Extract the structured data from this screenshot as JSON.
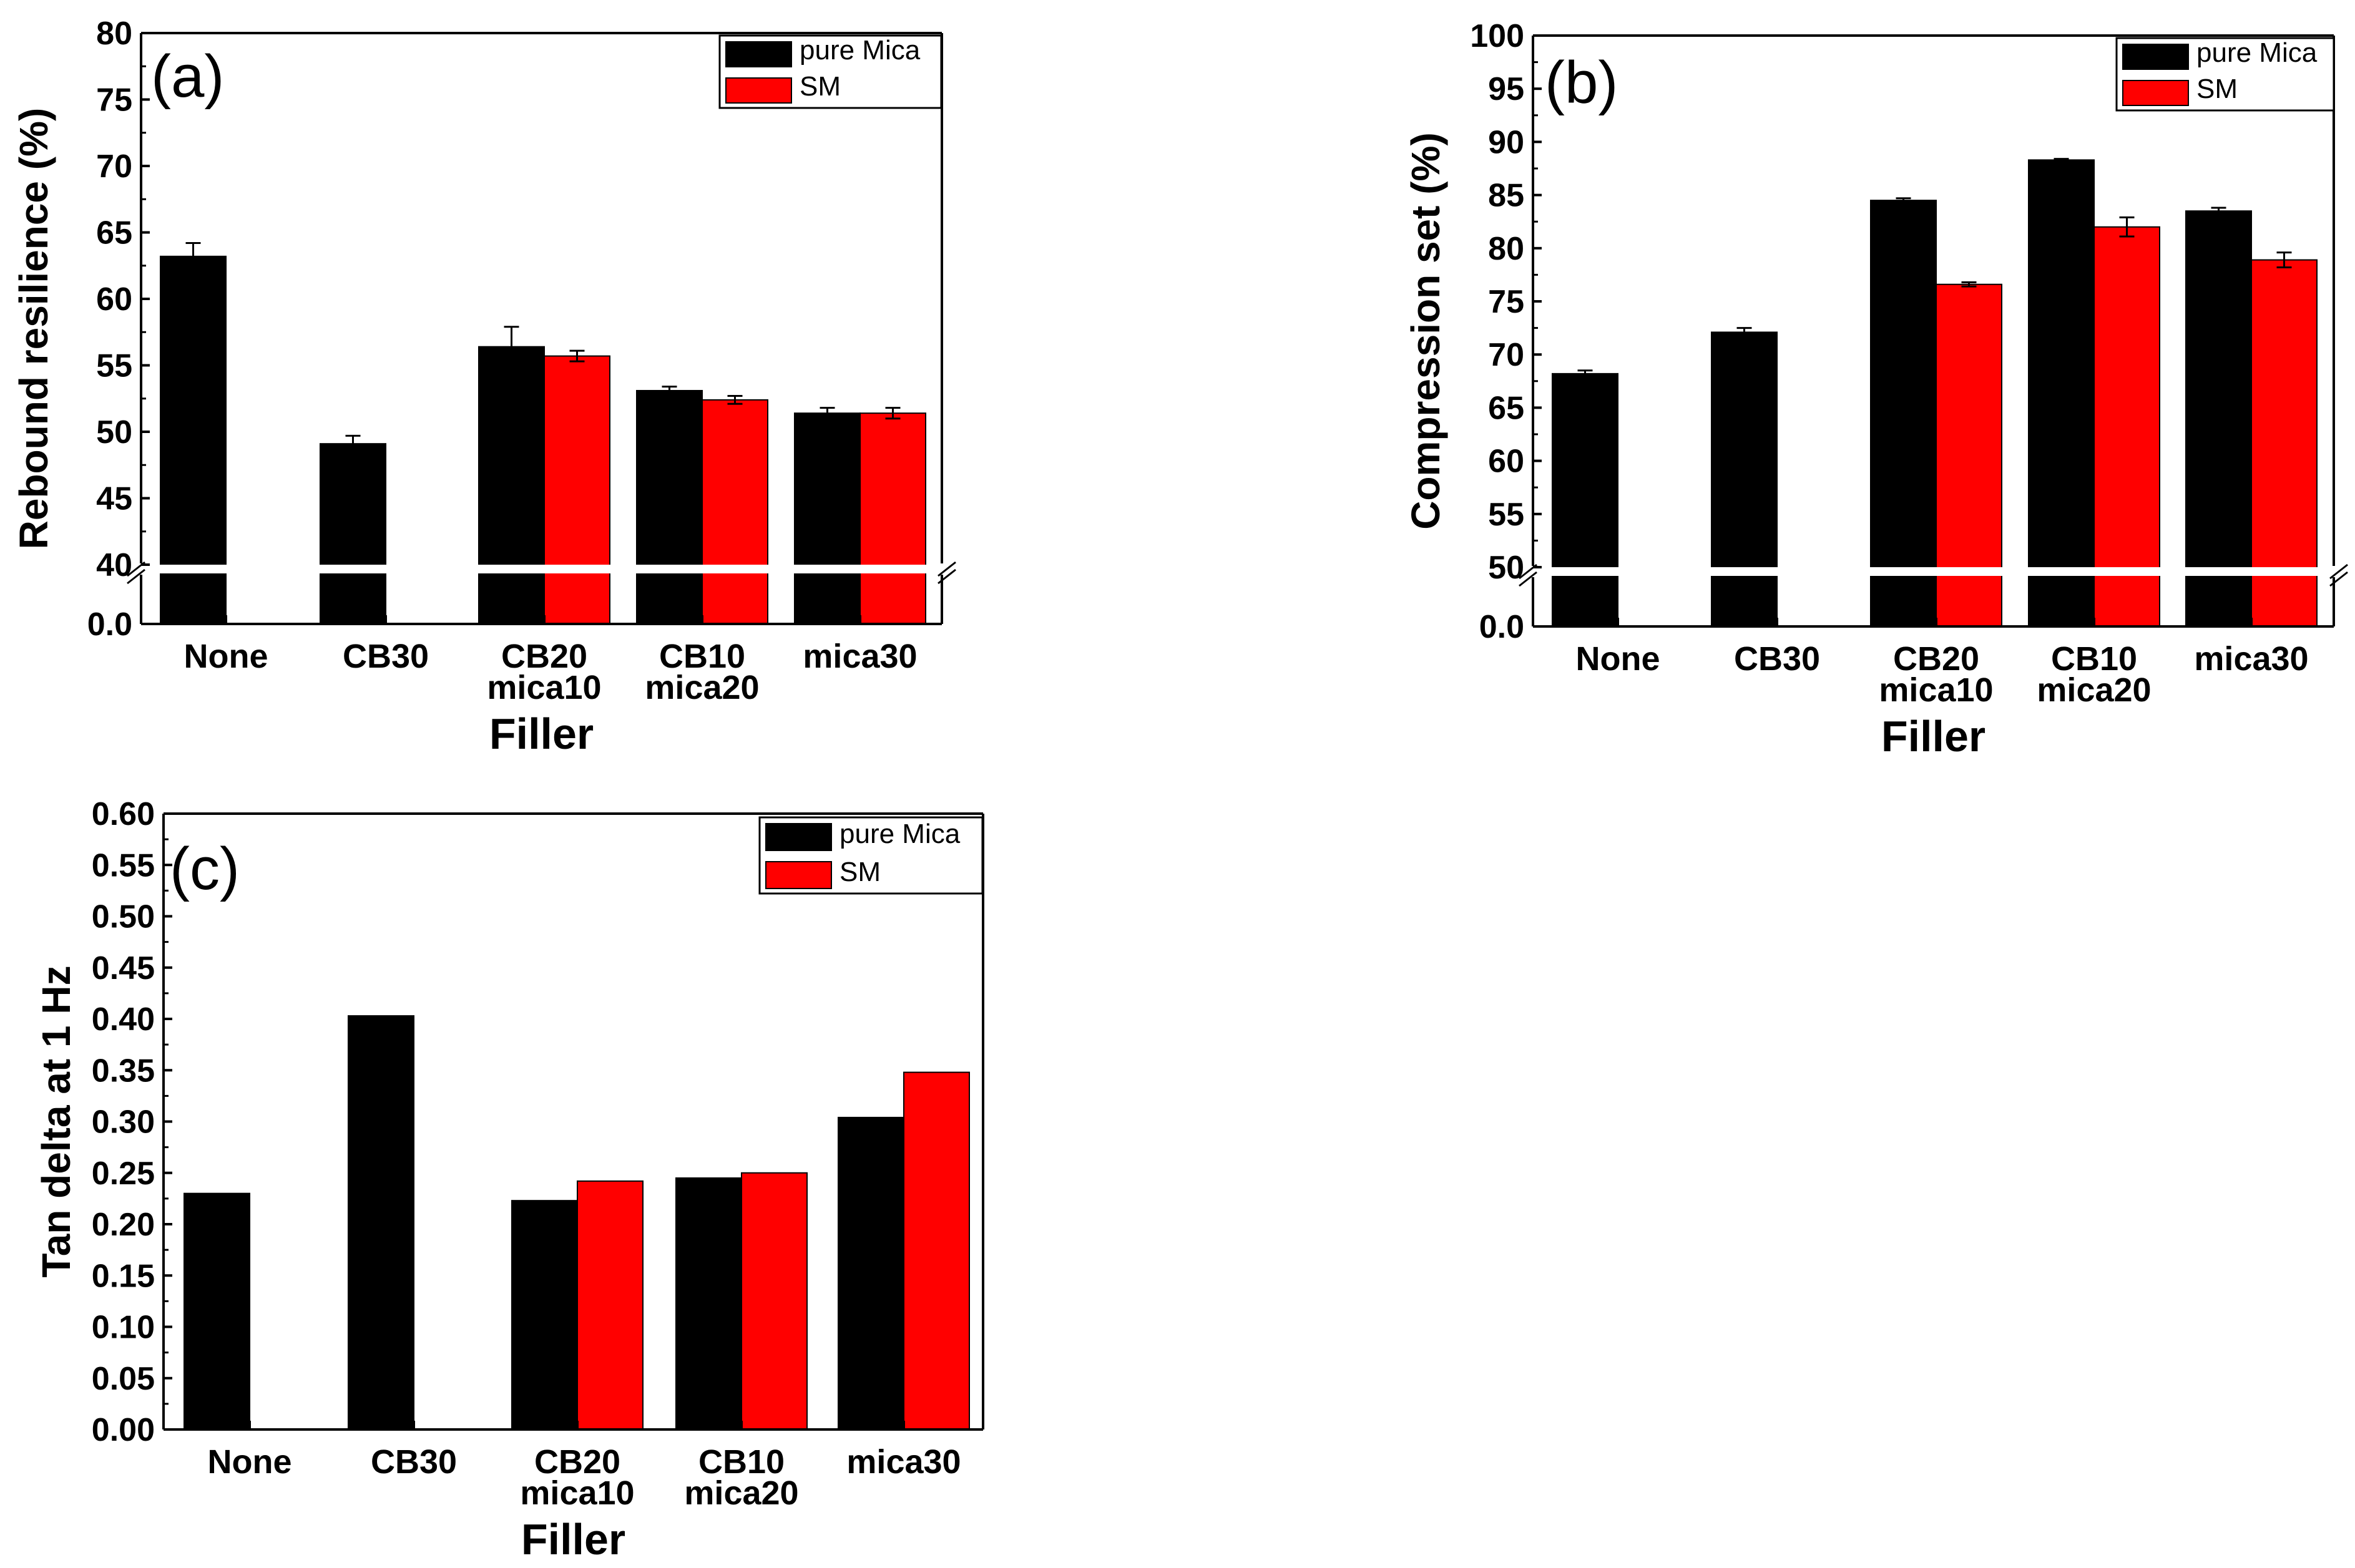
{
  "colors": {
    "pure_mica": "#000000",
    "sm": "#ff0000",
    "axis": "#000000",
    "background": "#ffffff"
  },
  "chart_data": [
    {
      "id": "a",
      "type": "bar",
      "panel_label": "(a)",
      "title": "",
      "xlabel": "Filler",
      "ylabel": "Rebound resilience (%)",
      "categories": [
        [
          "None"
        ],
        [
          "CB30"
        ],
        [
          "CB20",
          "mica10"
        ],
        [
          "CB10",
          "mica20"
        ],
        [
          "mica30"
        ]
      ],
      "series": [
        {
          "name": "pure Mica",
          "values": [
            63.2,
            49.1,
            56.4,
            53.1,
            51.4
          ],
          "errors": [
            1.0,
            0.6,
            1.5,
            0.3,
            0.4
          ]
        },
        {
          "name": "SM",
          "values": [
            null,
            null,
            55.7,
            52.4,
            51.4
          ],
          "errors": [
            null,
            null,
            0.4,
            0.3,
            0.4
          ]
        }
      ],
      "axis_break": {
        "lower_ticks": [
          "0.0"
        ],
        "lower_range": [
          0,
          0
        ],
        "upper_range": [
          40,
          80
        ]
      },
      "ylim": [
        40,
        80
      ],
      "yticks": [
        "40",
        "45",
        "50",
        "55",
        "60",
        "65",
        "70",
        "75",
        "80"
      ],
      "legend": [
        "pure Mica",
        "SM"
      ],
      "legend_position": "top-right",
      "grid": false
    },
    {
      "id": "b",
      "type": "bar",
      "panel_label": "(b)",
      "title": "",
      "xlabel": "Filler",
      "ylabel": "Compression set (%)",
      "categories": [
        [
          "None"
        ],
        [
          "CB30"
        ],
        [
          "CB20",
          "mica10"
        ],
        [
          "CB10",
          "mica20"
        ],
        [
          "mica30"
        ]
      ],
      "series": [
        {
          "name": "pure Mica",
          "values": [
            68.2,
            72.1,
            84.5,
            88.3,
            83.5
          ],
          "errors": [
            0.3,
            0.4,
            0.2,
            0.1,
            0.3
          ]
        },
        {
          "name": "SM",
          "values": [
            null,
            null,
            76.6,
            82.0,
            78.9
          ],
          "errors": [
            null,
            null,
            0.2,
            0.9,
            0.7
          ]
        }
      ],
      "axis_break": {
        "lower_ticks": [
          "0.0"
        ],
        "lower_range": [
          0,
          0
        ],
        "upper_range": [
          50,
          100
        ]
      },
      "ylim": [
        50,
        100
      ],
      "yticks": [
        "50",
        "55",
        "60",
        "65",
        "70",
        "75",
        "80",
        "85",
        "90",
        "95",
        "100"
      ],
      "legend": [
        "pure Mica",
        "SM"
      ],
      "legend_position": "top-right",
      "grid": false
    },
    {
      "id": "c",
      "type": "bar",
      "panel_label": "(c)",
      "title": "",
      "xlabel": "Filler",
      "ylabel": "Tan delta at 1 Hz",
      "categories": [
        [
          "None"
        ],
        [
          "CB30"
        ],
        [
          "CB20",
          "mica10"
        ],
        [
          "CB10",
          "mica20"
        ],
        [
          "mica30"
        ]
      ],
      "series": [
        {
          "name": "pure Mica",
          "values": [
            0.23,
            0.403,
            0.223,
            0.245,
            0.304
          ]
        },
        {
          "name": "SM",
          "values": [
            null,
            null,
            0.242,
            0.25,
            0.348
          ]
        }
      ],
      "ylim": [
        0,
        0.6
      ],
      "yticks": [
        "0.00",
        "0.05",
        "0.10",
        "0.15",
        "0.20",
        "0.25",
        "0.30",
        "0.35",
        "0.40",
        "0.45",
        "0.50",
        "0.55",
        "0.60"
      ],
      "legend": [
        "pure Mica",
        "SM"
      ],
      "legend_position": "top-right",
      "grid": false
    }
  ]
}
